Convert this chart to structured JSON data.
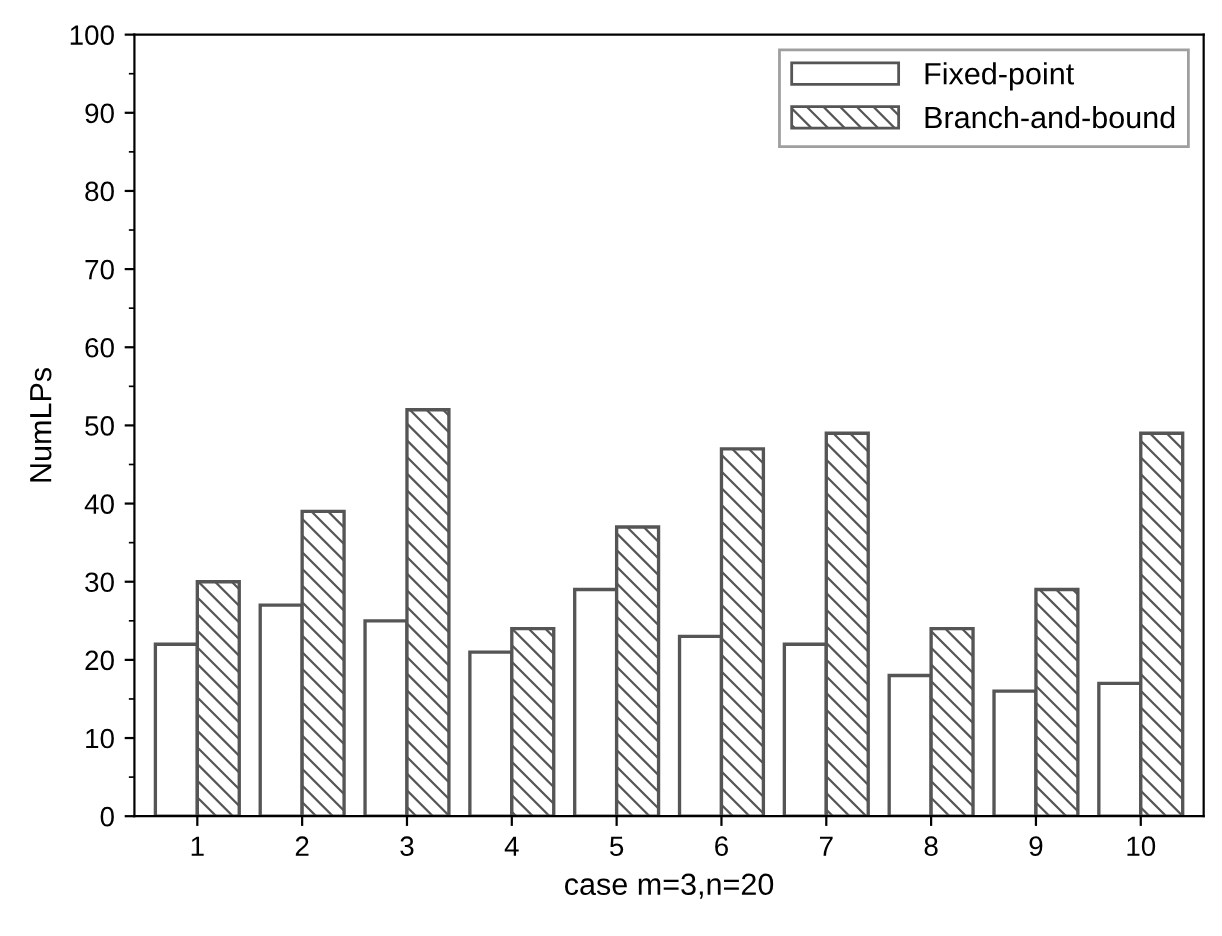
{
  "chart_data": {
    "type": "bar",
    "xlabel": "case m=3,n=20",
    "ylabel": "NumLPs",
    "categories": [
      "1",
      "2",
      "3",
      "4",
      "5",
      "6",
      "7",
      "8",
      "9",
      "10"
    ],
    "series": [
      {
        "name": "Fixed-point",
        "color": "#ffffff",
        "values": [
          22,
          27,
          25,
          21,
          29,
          23,
          22,
          18,
          16,
          17
        ]
      },
      {
        "name": "Branch-and-bound",
        "color": "#555555",
        "values": [
          30,
          39,
          52,
          24,
          37,
          47,
          49,
          24,
          29,
          49
        ]
      }
    ],
    "ylim": [
      0,
      100
    ],
    "yticks": [
      0,
      10,
      20,
      30,
      40,
      50,
      60,
      70,
      80,
      90,
      100
    ],
    "grid": false,
    "legend": "top right"
  }
}
